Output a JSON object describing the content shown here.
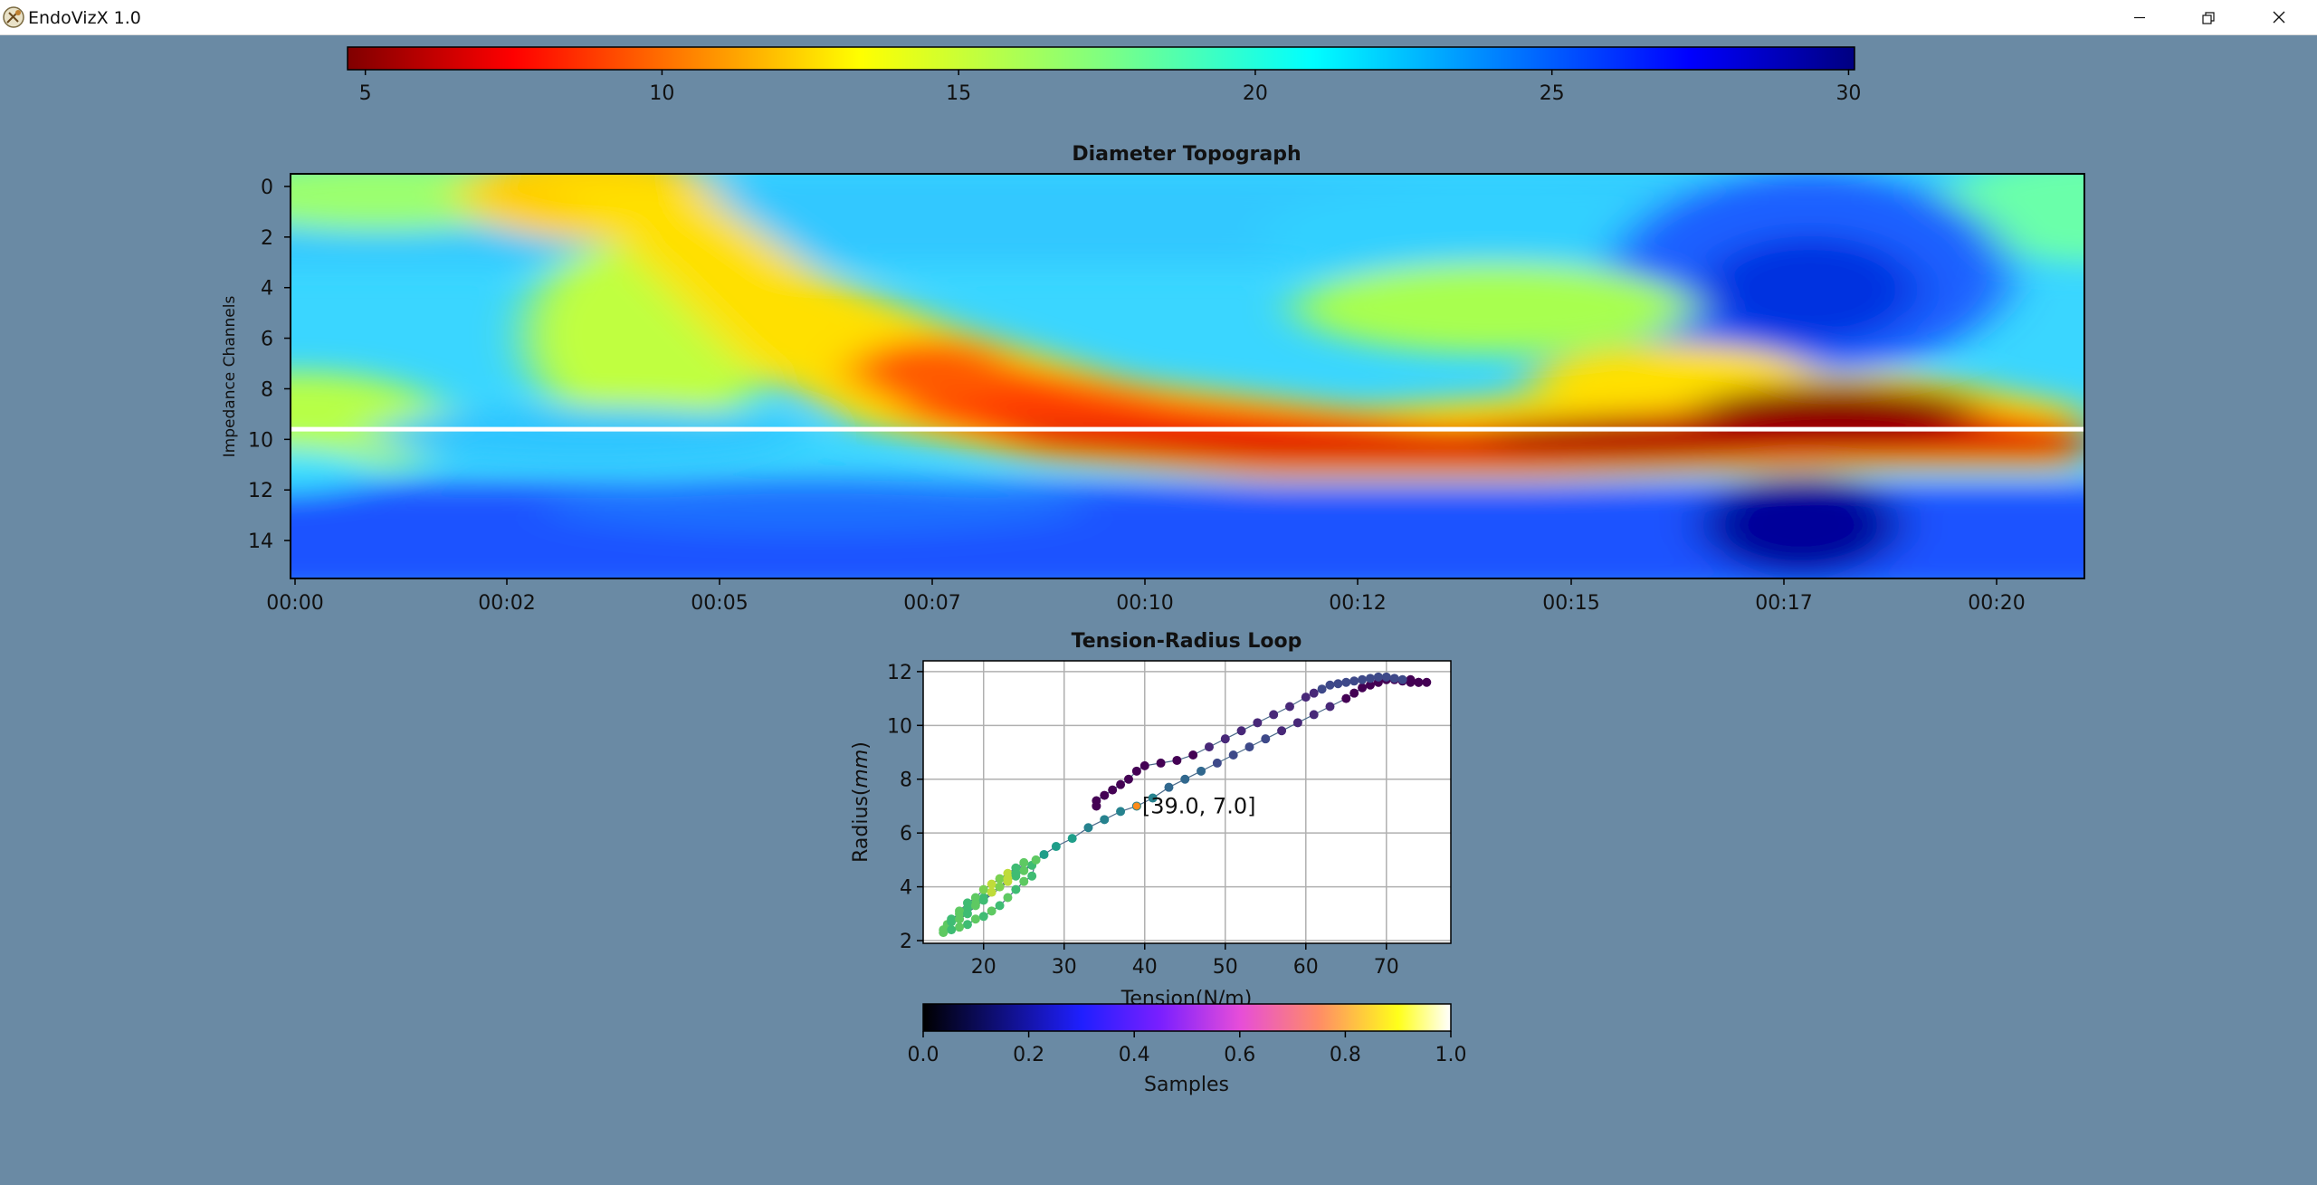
{
  "window": {
    "title": "EndoVizX 1.0",
    "icons": [
      "app-logo-icon",
      "minimize-icon",
      "restore-icon",
      "close-icon"
    ]
  },
  "colorbar_top": {
    "colormap": "jet_r",
    "min": 4.7,
    "max": 30.1,
    "ticks": [
      5,
      10,
      15,
      20,
      25,
      30
    ]
  },
  "colorbar_bottom": {
    "colormap": "gnuplot2",
    "label": "Samples",
    "min": 0.0,
    "max": 1.0,
    "ticks": [
      "0.0",
      "0.2",
      "0.4",
      "0.6",
      "0.8",
      "1.0"
    ]
  },
  "topograph": {
    "title": "Diameter Topograph",
    "ylabel": "Impedance Channels",
    "yticks": [
      "0",
      "2",
      "4",
      "6",
      "8",
      "10",
      "12",
      "14"
    ],
    "xticks": [
      "00:00",
      "00:02",
      "00:05",
      "00:07",
      "00:10",
      "00:12",
      "00:15",
      "00:17",
      "00:20"
    ],
    "marker_channel": 9.6,
    "marker_color": "#ffffff"
  },
  "chart_data": {
    "type": "scatter",
    "title": "Tension-Radius Loop",
    "xlabel": "Tension(N/m)",
    "ylabel": "Radius(mm)",
    "xticks": [
      "20",
      "30",
      "40",
      "50",
      "60",
      "70"
    ],
    "yticks": [
      "2",
      "4",
      "6",
      "8",
      "10",
      "12"
    ],
    "xlim": [
      12.5,
      78
    ],
    "ylim": [
      1.9,
      12.4
    ],
    "grid": true,
    "annotation": "[39.0, 7.0]",
    "annotation_point": [
      39.0,
      7.0
    ],
    "points": [
      [
        15,
        2.4
      ],
      [
        15.5,
        2.6
      ],
      [
        16,
        2.8
      ],
      [
        17,
        3.0
      ],
      [
        18,
        3.2
      ],
      [
        19,
        3.4
      ],
      [
        20,
        3.6
      ],
      [
        21,
        3.8
      ],
      [
        22,
        4.0
      ],
      [
        23,
        4.2
      ],
      [
        24,
        4.4
      ],
      [
        25,
        4.6
      ],
      [
        26,
        4.8
      ],
      [
        26.5,
        5.0
      ],
      [
        26,
        4.4
      ],
      [
        25,
        4.2
      ],
      [
        24,
        3.9
      ],
      [
        23,
        3.6
      ],
      [
        22,
        3.3
      ],
      [
        21,
        3.1
      ],
      [
        20,
        2.9
      ],
      [
        19,
        2.8
      ],
      [
        18,
        2.6
      ],
      [
        17,
        2.5
      ],
      [
        16,
        2.4
      ],
      [
        15,
        2.3
      ],
      [
        16,
        2.7
      ],
      [
        17,
        3.1
      ],
      [
        18,
        3.4
      ],
      [
        19,
        3.6
      ],
      [
        20,
        3.9
      ],
      [
        21,
        4.1
      ],
      [
        22,
        4.3
      ],
      [
        23,
        4.5
      ],
      [
        24,
        4.7
      ],
      [
        25,
        4.9
      ],
      [
        24,
        4.5
      ],
      [
        23,
        4.3
      ],
      [
        22,
        4.0
      ],
      [
        21,
        3.8
      ],
      [
        20,
        3.5
      ],
      [
        19,
        3.3
      ],
      [
        18,
        3.0
      ],
      [
        17,
        2.8
      ],
      [
        27.5,
        5.2
      ],
      [
        29,
        5.5
      ],
      [
        31,
        5.8
      ],
      [
        33,
        6.2
      ],
      [
        35,
        6.5
      ],
      [
        37,
        6.8
      ],
      [
        39,
        7.0
      ],
      [
        41,
        7.3
      ],
      [
        43,
        7.7
      ],
      [
        45,
        8.0
      ],
      [
        47,
        8.3
      ],
      [
        49,
        8.6
      ],
      [
        51,
        8.9
      ],
      [
        53,
        9.2
      ],
      [
        55,
        9.5
      ],
      [
        57,
        9.8
      ],
      [
        59,
        10.1
      ],
      [
        61,
        10.4
      ],
      [
        63,
        10.7
      ],
      [
        65,
        11.0
      ],
      [
        66,
        11.2
      ],
      [
        67,
        11.4
      ],
      [
        68,
        11.5
      ],
      [
        69,
        11.6
      ],
      [
        70,
        11.7
      ],
      [
        71,
        11.7
      ],
      [
        72,
        11.65
      ],
      [
        73,
        11.6
      ],
      [
        74,
        11.6
      ],
      [
        75,
        11.6
      ],
      [
        74,
        11.6
      ],
      [
        73,
        11.7
      ],
      [
        72,
        11.7
      ],
      [
        71,
        11.75
      ],
      [
        70,
        11.8
      ],
      [
        69,
        11.8
      ],
      [
        68,
        11.75
      ],
      [
        67,
        11.7
      ],
      [
        66,
        11.65
      ],
      [
        65,
        11.6
      ],
      [
        64,
        11.55
      ],
      [
        63,
        11.5
      ],
      [
        62,
        11.35
      ],
      [
        61,
        11.2
      ],
      [
        60,
        11.05
      ],
      [
        58,
        10.7
      ],
      [
        56,
        10.4
      ],
      [
        54,
        10.1
      ],
      [
        52,
        9.8
      ],
      [
        50,
        9.5
      ],
      [
        48,
        9.2
      ],
      [
        46,
        8.9
      ],
      [
        44,
        8.7
      ],
      [
        42,
        8.6
      ],
      [
        40,
        8.5
      ],
      [
        39,
        8.3
      ],
      [
        38,
        8.0
      ],
      [
        37,
        7.8
      ],
      [
        36,
        7.6
      ],
      [
        35,
        7.4
      ],
      [
        34,
        7.2
      ],
      [
        34,
        7.0
      ]
    ]
  }
}
